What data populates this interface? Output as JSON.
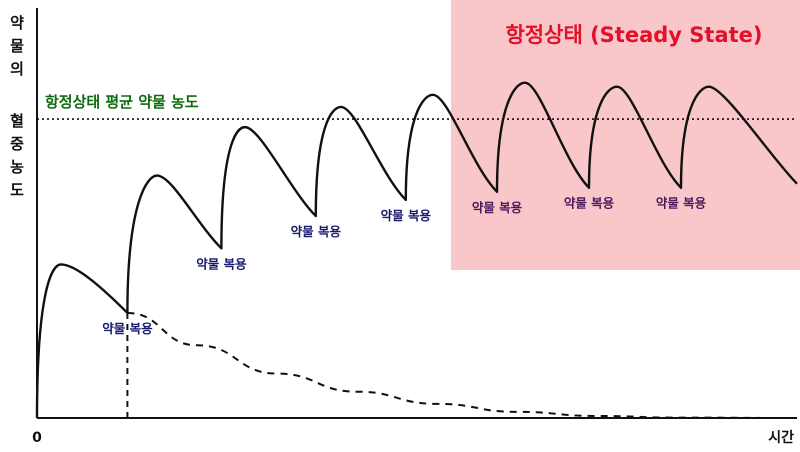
{
  "chart_data": {
    "type": "line",
    "title": "",
    "ylabel": "약물의 혈중농도",
    "xlabel": "시간",
    "x_ticks": [
      "0"
    ],
    "region": {
      "label": "항정상태 (Steady State)",
      "color": "#f9c6ca",
      "label_color": "#e2112a"
    },
    "steady_state_average": {
      "label": "항정상태 평균 약물 농도",
      "color": "#0d6b0d",
      "value": 0.74
    },
    "dose_label": "약물 복용",
    "dose_label_color": "#1a1a6e",
    "dose_label_color_in_region": "#4b1b5e",
    "series": [
      {
        "style": "solid",
        "points": [
          [
            0,
            0.0
          ],
          [
            0.6,
            0.38
          ],
          [
            2.26,
            0.26
          ],
          [
            3.0,
            0.6
          ],
          [
            4.61,
            0.42
          ],
          [
            5.2,
            0.72
          ],
          [
            6.97,
            0.5
          ],
          [
            7.6,
            0.77
          ],
          [
            9.22,
            0.54
          ],
          [
            9.9,
            0.8
          ],
          [
            11.5,
            0.56
          ],
          [
            12.2,
            0.83
          ],
          [
            13.8,
            0.57
          ],
          [
            14.5,
            0.82
          ],
          [
            16.1,
            0.57
          ],
          [
            16.8,
            0.82
          ],
          [
            19.0,
            0.58
          ]
        ]
      },
      {
        "style": "dashed",
        "points": [
          [
            2.26,
            0.26
          ],
          [
            4.0,
            0.18
          ],
          [
            6.0,
            0.11
          ],
          [
            8.0,
            0.065
          ],
          [
            10.0,
            0.035
          ],
          [
            12.0,
            0.015
          ],
          [
            14.0,
            0.005
          ],
          [
            16.0,
            0.001
          ],
          [
            19.0,
            0.0
          ]
        ]
      }
    ],
    "doses": [
      {
        "x": 2.26,
        "y": 0.26
      },
      {
        "x": 4.61,
        "y": 0.42
      },
      {
        "x": 6.97,
        "y": 0.5
      },
      {
        "x": 9.22,
        "y": 0.54
      },
      {
        "x": 11.5,
        "y": 0.56
      },
      {
        "x": 13.8,
        "y": 0.57
      },
      {
        "x": 16.1,
        "y": 0.57
      }
    ],
    "xlim": [
      0,
      19
    ],
    "ylim": [
      0,
      1.0
    ],
    "grid": false
  }
}
